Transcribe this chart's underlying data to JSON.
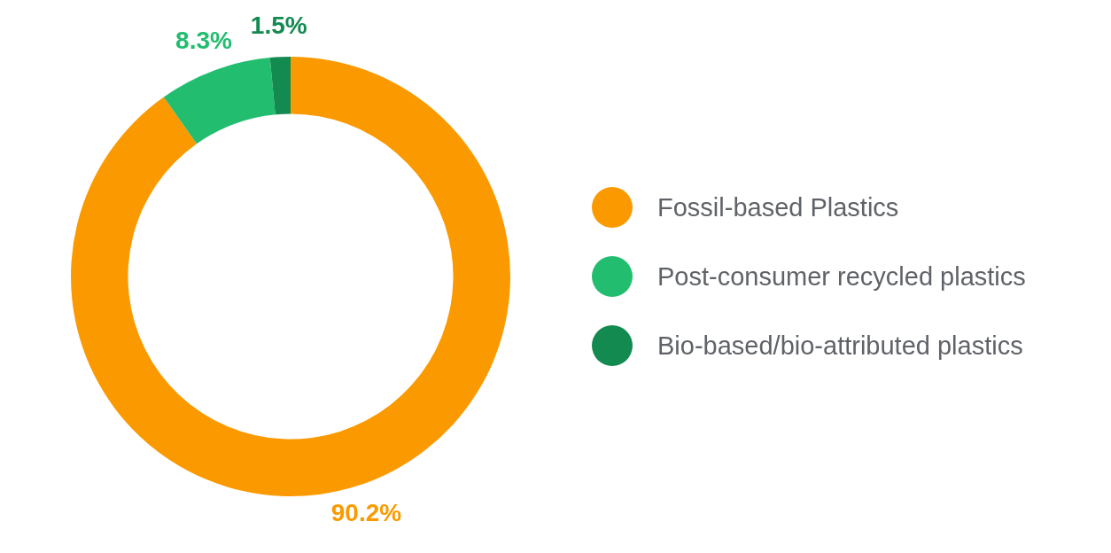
{
  "chart_data": {
    "type": "donut",
    "categories": [
      "Fossil-based Plastics",
      "Post-consumer recycled plastics",
      "Bio-based/bio-attributed plastics"
    ],
    "values": [
      90.2,
      8.3,
      1.5
    ],
    "colors": [
      "#fb9a00",
      "#22bd6f",
      "#138a4f"
    ],
    "value_labels": [
      "90.2%",
      "8.3%",
      "1.5%"
    ],
    "legend": "right"
  }
}
